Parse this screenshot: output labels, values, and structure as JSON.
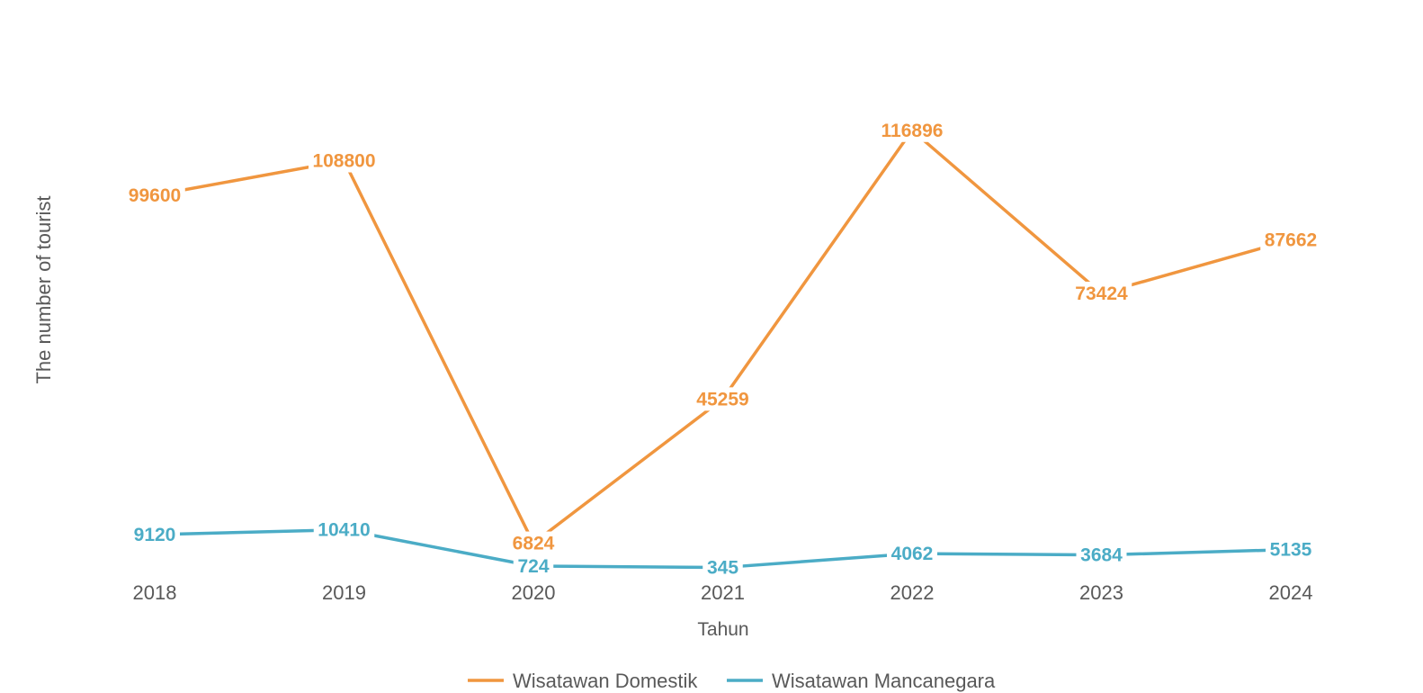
{
  "chart_data": {
    "type": "line",
    "title": "",
    "xlabel": "Tahun",
    "ylabel": "The number of tourist",
    "categories": [
      "2018",
      "2019",
      "2020",
      "2021",
      "2022",
      "2023",
      "2024"
    ],
    "ylim": [
      0,
      125000
    ],
    "grid": false,
    "legend": "bottom",
    "series": [
      {
        "name": "Wisatawan Domestik",
        "color": "#F0963F",
        "values": [
          99600,
          108800,
          6824,
          45259,
          116896,
          73424,
          87662
        ]
      },
      {
        "name": "Wisatawan Mancanegara",
        "color": "#4BACC6",
        "values": [
          9120,
          10410,
          724,
          345,
          4062,
          3684,
          5135
        ]
      }
    ]
  }
}
